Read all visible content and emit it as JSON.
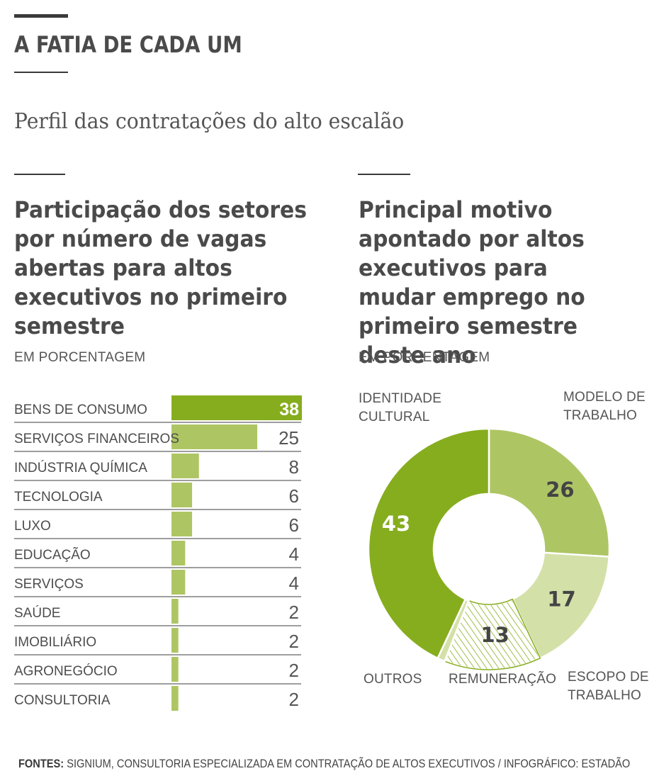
{
  "header": {
    "kicker": "A FATIA DE CADA UM",
    "subtitle": "Perfil das contratações do alto escalão"
  },
  "footer": {
    "label": "FONTES:",
    "text": "SIGNIUM, CONSULTORIA ESPECIALIZADA EM CONTRATAÇÃO DE ALTOS EXECUTIVOS / INFOGRÁFICO: ESTADÃO"
  },
  "colors": {
    "dark_green": "#86ad1e",
    "medium_green": "#aec564",
    "light_green": "#d3e0a8",
    "hatch_green": "#86ad1e",
    "text": "#4d4d4d"
  },
  "chart_data": [
    {
      "type": "bar",
      "orientation": "horizontal",
      "title": "Participação dos setores por número de vagas abertas para altos executivos no primeiro semestre",
      "unit": "EM PORCENTAGEM",
      "categories": [
        "BENS DE CONSUMO",
        "SERVIÇOS FINANCEIROS",
        "INDÚSTRIA QUÍMICA",
        "TECNOLOGIA",
        "LUXO",
        "EDUCAÇÃO",
        "SERVIÇOS",
        "SAÚDE",
        "IMOBILIÁRIO",
        "AGRONEGÓCIO",
        "CONSULTORIA"
      ],
      "values": [
        38,
        25,
        8,
        6,
        6,
        4,
        4,
        2,
        2,
        2,
        2
      ],
      "highlight_index": 0,
      "xlim": [
        0,
        38
      ]
    },
    {
      "type": "pie",
      "style": "donut",
      "title": "Principal motivo apontado por altos executivos para mudar emprego no primeiro semestre deste ano",
      "unit": "EM PORCENTAGEM",
      "slices": [
        {
          "label": "MODELO DE\nTRABALHO",
          "value": 26,
          "color": "#aec564",
          "fill": "solid"
        },
        {
          "label": "ESCOPO DE\nTRABALHO",
          "value": 17,
          "color": "#d3e0a8",
          "fill": "solid"
        },
        {
          "label": "REMUNERAÇÃO",
          "value": 13,
          "color": "#86ad1e",
          "fill": "hatched"
        },
        {
          "label": "OUTROS",
          "value": 1,
          "color": "#d3e0a8",
          "fill": "solid"
        },
        {
          "label": "IDENTIDADE\nCULTURAL",
          "value": 43,
          "color": "#86ad1e",
          "fill": "solid"
        }
      ]
    }
  ]
}
